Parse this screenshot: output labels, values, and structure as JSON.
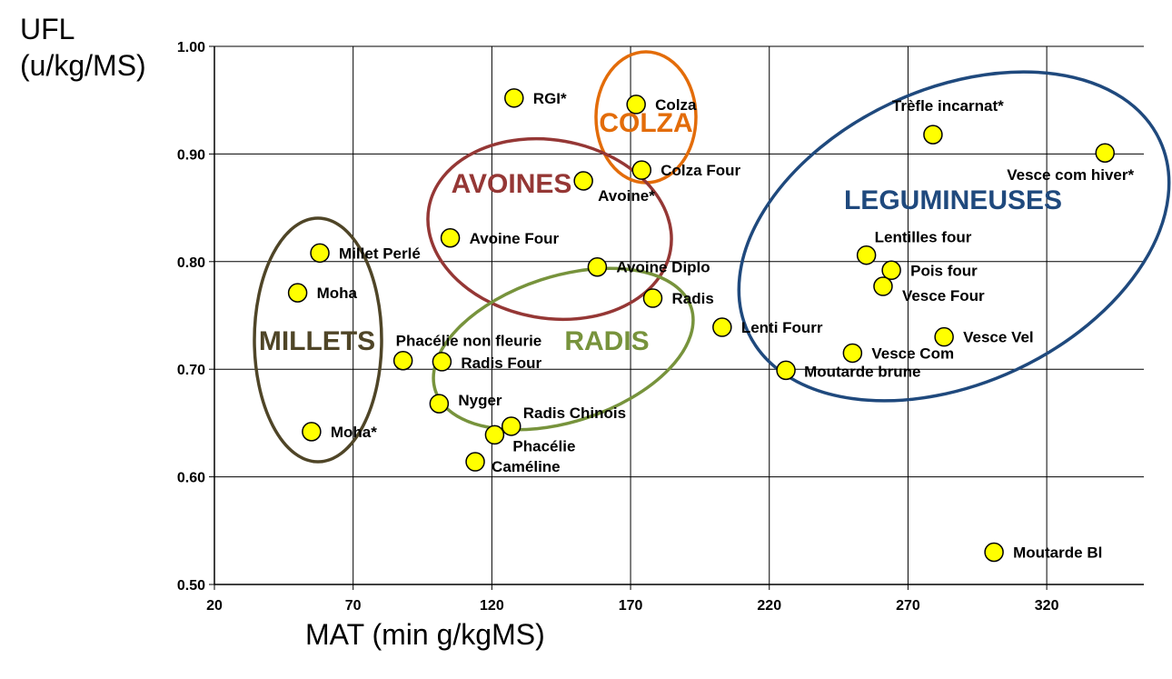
{
  "chart_data": {
    "type": "scatter",
    "title": "",
    "ylabel_line1": "UFL",
    "ylabel_line2": "(u/kg/MS)",
    "xlabel": "MAT (min g/kgMS)",
    "xlim": [
      20,
      355
    ],
    "ylim": [
      0.5,
      1.0
    ],
    "x_ticks": [
      "20",
      "70",
      "120",
      "170",
      "220",
      "270",
      "320"
    ],
    "y_ticks": [
      "0.50",
      "0.60",
      "0.70",
      "0.80",
      "0.90",
      "1.00"
    ],
    "grid": true,
    "marker_color": "#ffff00",
    "points": [
      {
        "label": "RGI*",
        "x": 128,
        "y": 0.952
      },
      {
        "label": "Colza",
        "x": 172,
        "y": 0.946
      },
      {
        "label": "Colza Four",
        "x": 174,
        "y": 0.885
      },
      {
        "label": "Avoine*",
        "x": 153,
        "y": 0.875
      },
      {
        "label": "Avoine Four",
        "x": 105,
        "y": 0.822
      },
      {
        "label": "Avoine Diplo",
        "x": 158,
        "y": 0.795
      },
      {
        "label": "Radis",
        "x": 178,
        "y": 0.766
      },
      {
        "label": "Lenti Fourr",
        "x": 203,
        "y": 0.739
      },
      {
        "label": "Millet Perlé",
        "x": 58,
        "y": 0.808
      },
      {
        "label": "Moha",
        "x": 50,
        "y": 0.771
      },
      {
        "label": "Moha*",
        "x": 55,
        "y": 0.642
      },
      {
        "label": "Phacélie non fleurie",
        "x": 88,
        "y": 0.708
      },
      {
        "label": "Radis Four",
        "x": 102,
        "y": 0.707
      },
      {
        "label": "Nyger",
        "x": 101,
        "y": 0.668
      },
      {
        "label": "Radis Chinois",
        "x": 127,
        "y": 0.647
      },
      {
        "label": "Phacélie",
        "x": 121,
        "y": 0.639
      },
      {
        "label": "Caméline",
        "x": 114,
        "y": 0.614
      },
      {
        "label": "Trèfle incarnat*",
        "x": 279,
        "y": 0.918
      },
      {
        "label": "Vesce com hiver*",
        "x": 341,
        "y": 0.901
      },
      {
        "label": "Lentilles four",
        "x": 255,
        "y": 0.806
      },
      {
        "label": "Pois four",
        "x": 264,
        "y": 0.792
      },
      {
        "label": "Vesce Four",
        "x": 261,
        "y": 0.777
      },
      {
        "label": "Vesce Vel",
        "x": 283,
        "y": 0.73
      },
      {
        "label": "Vesce Com",
        "x": 250,
        "y": 0.715
      },
      {
        "label": "Moutarde brune",
        "x": 226,
        "y": 0.699
      },
      {
        "label": "Moutarde Bl",
        "x": 301,
        "y": 0.53
      }
    ],
    "groups": [
      {
        "label": "COLZA",
        "color": "#e36c09"
      },
      {
        "label": "AVOINES",
        "color": "#953735"
      },
      {
        "label": "RADIS",
        "color": "#77933c"
      },
      {
        "label": "MILLETS",
        "color": "#4f4527"
      },
      {
        "label": "LEGUMINEUSES",
        "color": "#1f497d"
      }
    ]
  }
}
